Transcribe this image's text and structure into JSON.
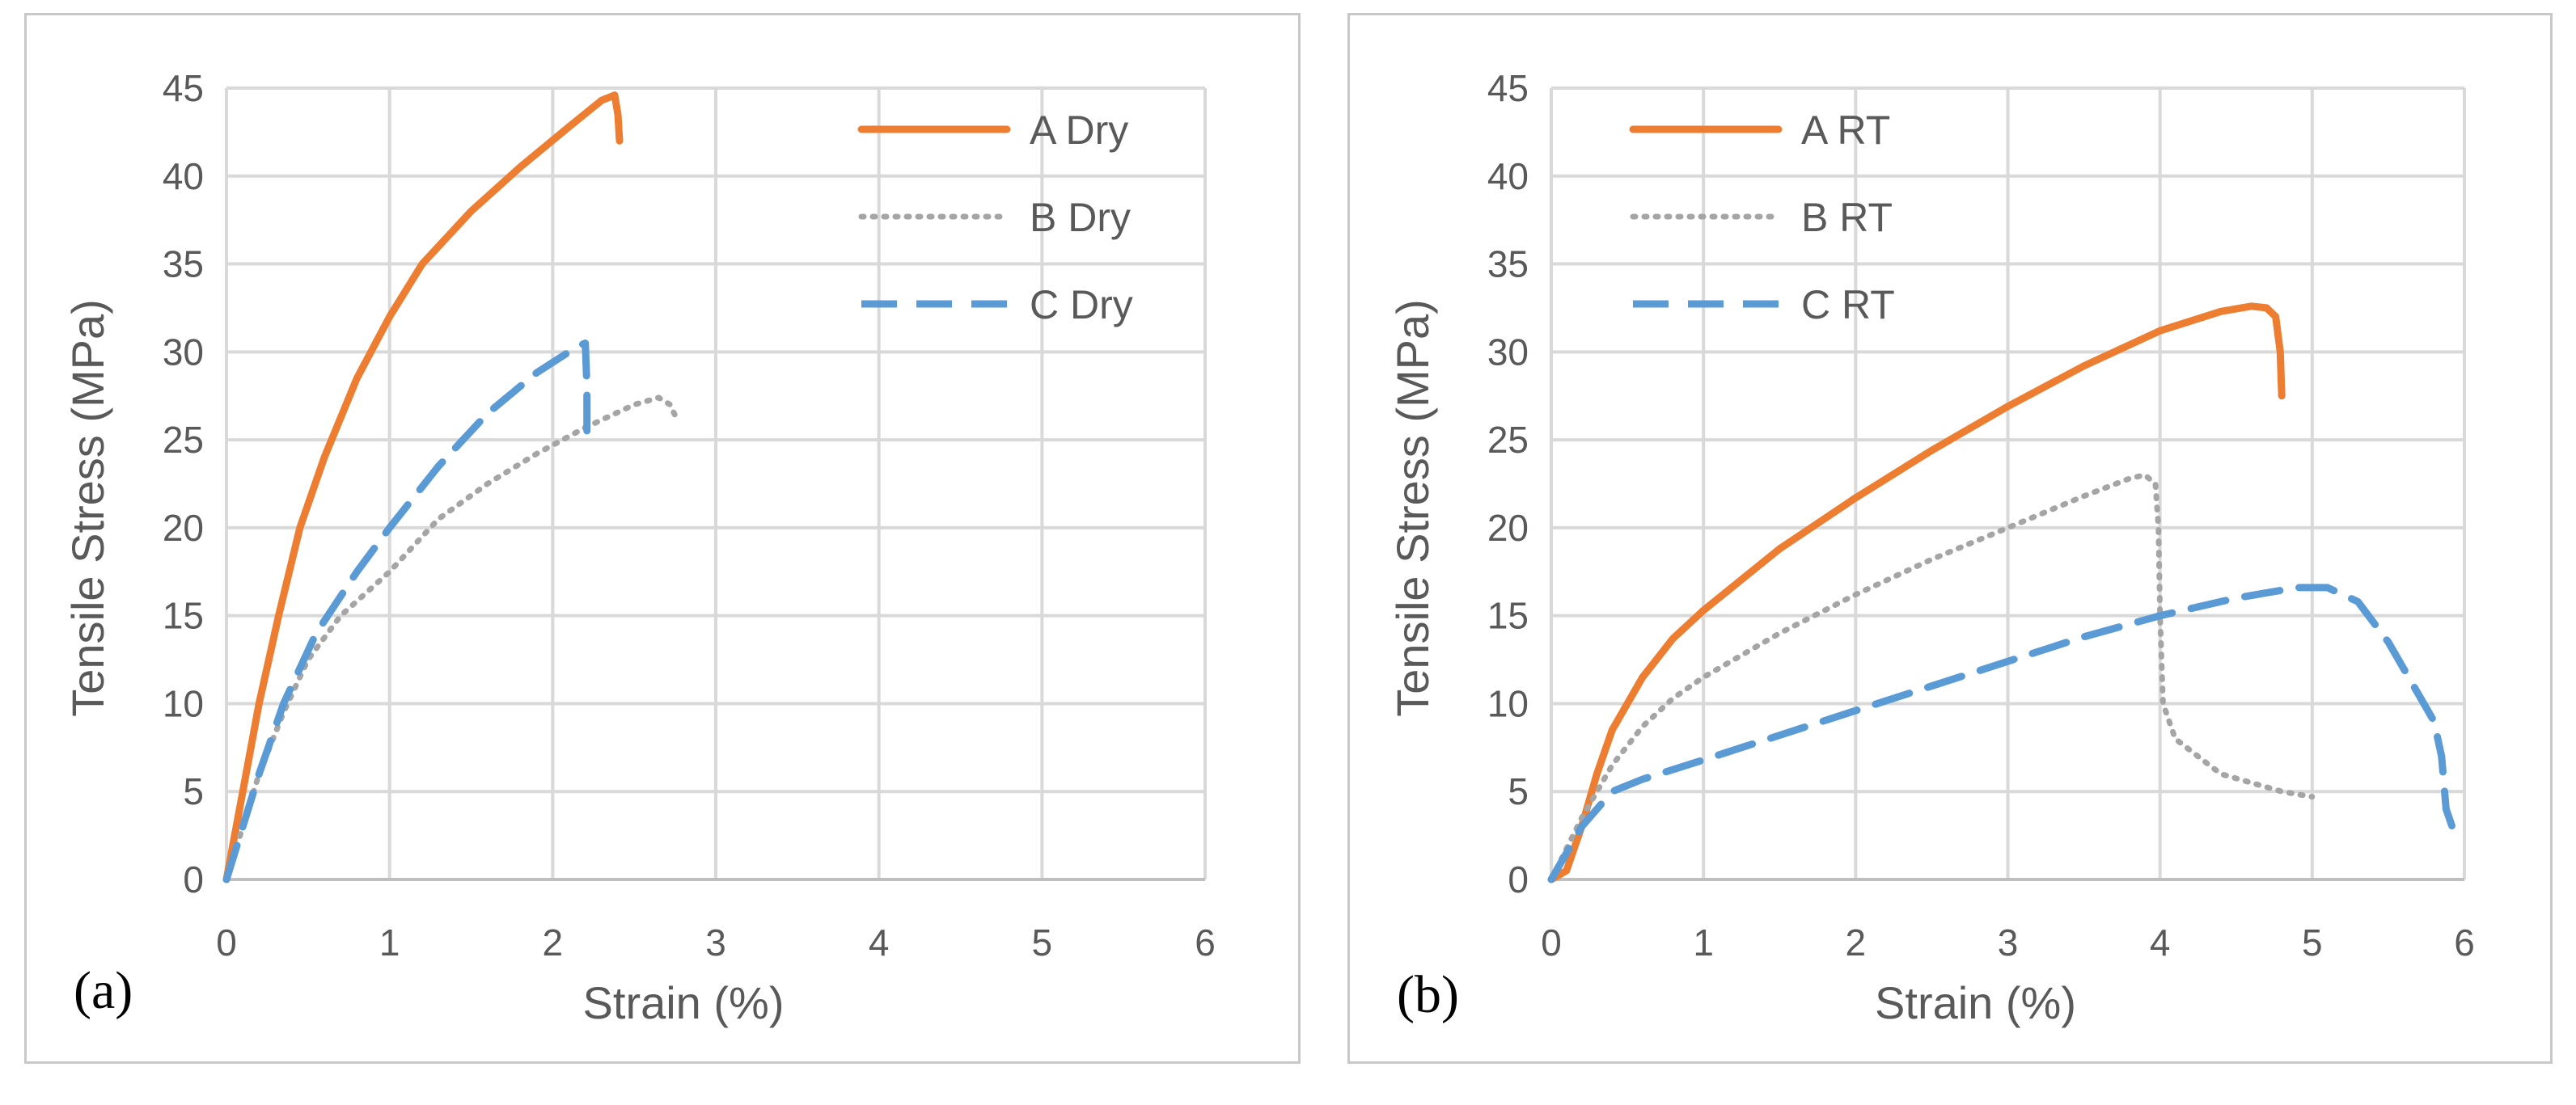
{
  "chart_data": [
    {
      "type": "line",
      "panel_label": "(a)",
      "title": "",
      "xlabel": "Strain (%)",
      "ylabel": "Tensile Stress (MPa)",
      "xlim": [
        0,
        6
      ],
      "ylim": [
        0,
        45
      ],
      "xticks": [
        "0",
        "1",
        "2",
        "3",
        "4",
        "5",
        "6"
      ],
      "yticks": [
        "0",
        "5",
        "10",
        "15",
        "20",
        "25",
        "30",
        "35",
        "40",
        "45"
      ],
      "grid": true,
      "legend_position": "top-right",
      "series": [
        {
          "name": "A Dry",
          "color": "#ed7d31",
          "dash": "solid",
          "points": [
            [
              0,
              0
            ],
            [
              0.1,
              5
            ],
            [
              0.2,
              10
            ],
            [
              0.32,
              15
            ],
            [
              0.45,
              20
            ],
            [
              0.6,
              24
            ],
            [
              0.8,
              28.5
            ],
            [
              1.0,
              32
            ],
            [
              1.2,
              35
            ],
            [
              1.5,
              38
            ],
            [
              1.8,
              40.5
            ],
            [
              2.1,
              42.8
            ],
            [
              2.3,
              44.3
            ],
            [
              2.38,
              44.6
            ],
            [
              2.4,
              43.5
            ],
            [
              2.41,
              42
            ]
          ]
        },
        {
          "name": "B Dry",
          "color": "#a5a5a5",
          "dash": "dotted",
          "points": [
            [
              0,
              0
            ],
            [
              0.1,
              3
            ],
            [
              0.2,
              6
            ],
            [
              0.35,
              9.5
            ],
            [
              0.5,
              12.5
            ],
            [
              0.7,
              15
            ],
            [
              1.0,
              17.5
            ],
            [
              1.3,
              20.5
            ],
            [
              1.6,
              22.5
            ],
            [
              1.9,
              24.2
            ],
            [
              2.2,
              25.7
            ],
            [
              2.5,
              27
            ],
            [
              2.65,
              27.4
            ],
            [
              2.72,
              27
            ],
            [
              2.77,
              26
            ]
          ]
        },
        {
          "name": "C Dry",
          "color": "#5b9bd5",
          "dash": "dashed",
          "points": [
            [
              0,
              0
            ],
            [
              0.1,
              3
            ],
            [
              0.2,
              6
            ],
            [
              0.35,
              10
            ],
            [
              0.55,
              14
            ],
            [
              0.8,
              17.5
            ],
            [
              1.0,
              20
            ],
            [
              1.3,
              23.5
            ],
            [
              1.6,
              26.5
            ],
            [
              1.9,
              28.8
            ],
            [
              2.15,
              30.3
            ],
            [
              2.2,
              30.5
            ],
            [
              2.21,
              28
            ],
            [
              2.21,
              25
            ]
          ]
        }
      ]
    },
    {
      "type": "line",
      "panel_label": "(b)",
      "title": "",
      "xlabel": "Strain (%)",
      "ylabel": "Tensile Stress (MPa)",
      "xlim": [
        0,
        6
      ],
      "ylim": [
        0,
        45
      ],
      "xticks": [
        "0",
        "1",
        "2",
        "3",
        "4",
        "5",
        "6"
      ],
      "yticks": [
        "0",
        "5",
        "10",
        "15",
        "20",
        "25",
        "30",
        "35",
        "40",
        "45"
      ],
      "grid": true,
      "legend_position": "top-left",
      "series": [
        {
          "name": "A RT",
          "color": "#ed7d31",
          "dash": "solid",
          "points": [
            [
              0,
              0
            ],
            [
              0.1,
              0.5
            ],
            [
              0.2,
              3
            ],
            [
              0.3,
              6
            ],
            [
              0.4,
              8.5
            ],
            [
              0.6,
              11.5
            ],
            [
              0.8,
              13.7
            ],
            [
              1.0,
              15.3
            ],
            [
              1.5,
              18.8
            ],
            [
              2.0,
              21.7
            ],
            [
              2.5,
              24.4
            ],
            [
              3.0,
              26.9
            ],
            [
              3.5,
              29.2
            ],
            [
              4.0,
              31.2
            ],
            [
              4.4,
              32.3
            ],
            [
              4.6,
              32.6
            ],
            [
              4.7,
              32.5
            ],
            [
              4.76,
              32
            ],
            [
              4.79,
              30
            ],
            [
              4.8,
              27.5
            ]
          ]
        },
        {
          "name": "B RT",
          "color": "#a5a5a5",
          "dash": "dotted",
          "points": [
            [
              0,
              0
            ],
            [
              0.2,
              3.5
            ],
            [
              0.4,
              6.5
            ],
            [
              0.6,
              8.7
            ],
            [
              0.8,
              10.3
            ],
            [
              1.0,
              11.5
            ],
            [
              1.5,
              14
            ],
            [
              2.0,
              16.2
            ],
            [
              2.5,
              18.2
            ],
            [
              3.0,
              20
            ],
            [
              3.5,
              21.8
            ],
            [
              3.8,
              22.8
            ],
            [
              3.9,
              23
            ],
            [
              3.97,
              22.5
            ],
            [
              3.99,
              20
            ],
            [
              4.0,
              15
            ],
            [
              4.02,
              10
            ],
            [
              4.1,
              8
            ],
            [
              4.4,
              6
            ],
            [
              4.8,
              5
            ],
            [
              5.0,
              4.7
            ]
          ]
        },
        {
          "name": "C RT",
          "color": "#5b9bd5",
          "dash": "dashed",
          "points": [
            [
              0,
              0
            ],
            [
              0.2,
              3
            ],
            [
              0.4,
              5
            ],
            [
              0.6,
              5.7
            ],
            [
              1.0,
              6.8
            ],
            [
              1.5,
              8.2
            ],
            [
              2.0,
              9.6
            ],
            [
              2.5,
              11
            ],
            [
              3.0,
              12.4
            ],
            [
              3.5,
              13.8
            ],
            [
              4.0,
              15
            ],
            [
              4.5,
              16
            ],
            [
              4.9,
              16.6
            ],
            [
              5.1,
              16.6
            ],
            [
              5.3,
              15.8
            ],
            [
              5.5,
              13.5
            ],
            [
              5.7,
              10.5
            ],
            [
              5.8,
              9
            ],
            [
              5.85,
              7
            ],
            [
              5.88,
              4
            ],
            [
              5.92,
              3
            ]
          ]
        }
      ]
    }
  ]
}
